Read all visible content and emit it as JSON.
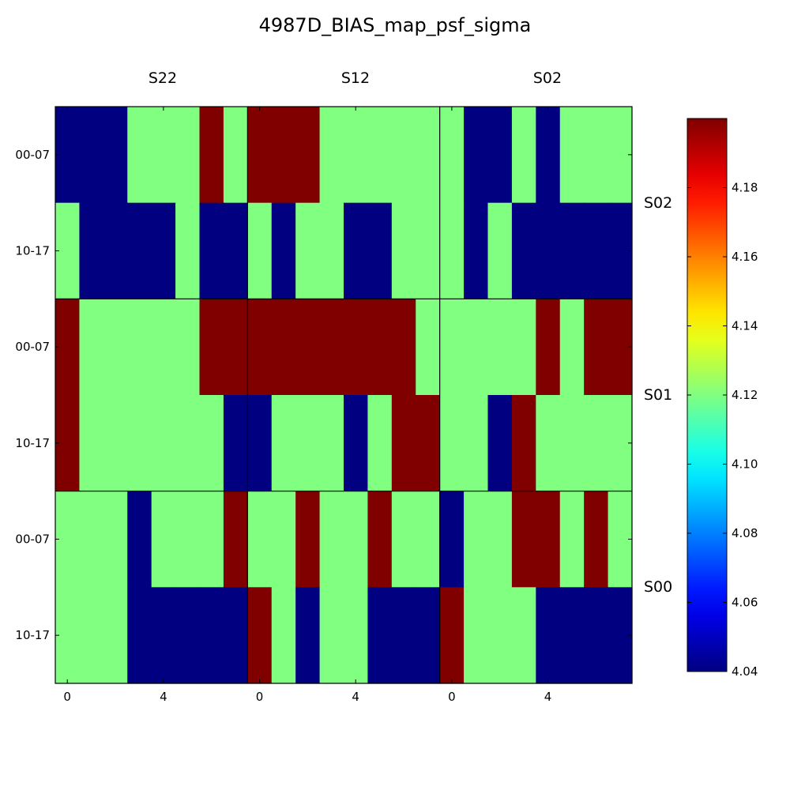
{
  "chart_data": {
    "type": "heatmap",
    "title": "4987D_BIAS_map_psf_sigma",
    "column_labels": [
      "S22",
      "S12",
      "S02"
    ],
    "row_labels": [
      "S02",
      "S01",
      "S00"
    ],
    "y_tick_labels": [
      "00-07",
      "10-17"
    ],
    "x_tick_labels": [
      "0",
      "4"
    ],
    "x_tick_values": [
      0,
      4
    ],
    "cells_per_panel": {
      "cols": 8,
      "rows": 2
    },
    "colorbar": {
      "min": 4.04,
      "max": 4.2,
      "ticks": [
        "4.04",
        "4.06",
        "4.08",
        "4.10",
        "4.12",
        "4.14",
        "4.16",
        "4.18"
      ],
      "colormap": "jet"
    },
    "values": [
      [
        [
          [
            4.04,
            4.04,
            4.04,
            4.12,
            4.12,
            4.12,
            4.2,
            4.12
          ],
          [
            4.12,
            4.04,
            4.04,
            4.04,
            4.04,
            4.12,
            4.04,
            4.04
          ]
        ],
        [
          [
            4.2,
            4.2,
            4.2,
            4.12,
            4.12,
            4.12,
            4.12,
            4.12
          ],
          [
            4.12,
            4.04,
            4.12,
            4.12,
            4.04,
            4.04,
            4.12,
            4.12
          ]
        ],
        [
          [
            4.12,
            4.04,
            4.04,
            4.12,
            4.04,
            4.12,
            4.12,
            4.12
          ],
          [
            4.12,
            4.04,
            4.12,
            4.04,
            4.04,
            4.04,
            4.04,
            4.04
          ]
        ]
      ],
      [
        [
          [
            4.2,
            4.12,
            4.12,
            4.12,
            4.12,
            4.12,
            4.2,
            4.2
          ],
          [
            4.2,
            4.12,
            4.12,
            4.12,
            4.12,
            4.12,
            4.12,
            4.04
          ]
        ],
        [
          [
            4.2,
            4.2,
            4.2,
            4.2,
            4.2,
            4.2,
            4.2,
            4.12
          ],
          [
            4.04,
            4.12,
            4.12,
            4.12,
            4.04,
            4.12,
            4.2,
            4.2
          ]
        ],
        [
          [
            4.12,
            4.12,
            4.12,
            4.12,
            4.2,
            4.12,
            4.2,
            4.2
          ],
          [
            4.12,
            4.12,
            4.04,
            4.2,
            4.12,
            4.12,
            4.12,
            4.12
          ]
        ]
      ],
      [
        [
          [
            4.12,
            4.12,
            4.12,
            4.04,
            4.12,
            4.12,
            4.12,
            4.2
          ],
          [
            4.12,
            4.12,
            4.12,
            4.04,
            4.04,
            4.04,
            4.04,
            4.04
          ]
        ],
        [
          [
            4.12,
            4.12,
            4.2,
            4.12,
            4.12,
            4.2,
            4.12,
            4.12
          ],
          [
            4.2,
            4.12,
            4.04,
            4.12,
            4.12,
            4.04,
            4.04,
            4.04
          ]
        ],
        [
          [
            4.04,
            4.12,
            4.12,
            4.2,
            4.2,
            4.12,
            4.2,
            4.12
          ],
          [
            4.2,
            4.12,
            4.12,
            4.12,
            4.04,
            4.04,
            4.04,
            4.04
          ]
        ]
      ]
    ]
  }
}
